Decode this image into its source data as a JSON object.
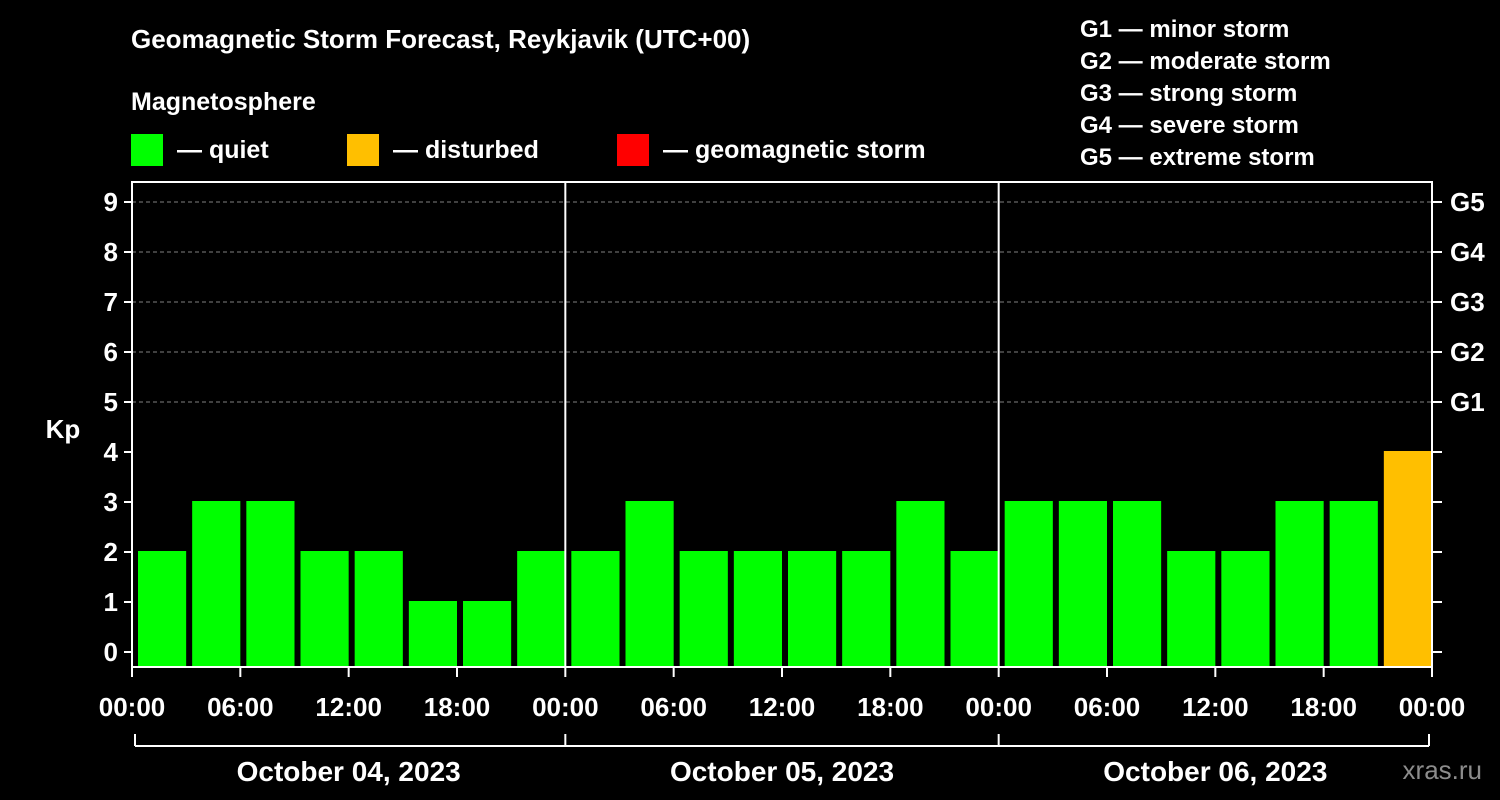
{
  "chart_data": {
    "type": "bar",
    "title": "Geomagnetic Storm Forecast, Reykjavik (UTC+00)",
    "subtitle": "Magnetosphere",
    "ylabel": "Kp",
    "ylim": [
      0,
      9
    ],
    "yticks": [
      "0",
      "1",
      "2",
      "3",
      "4",
      "5",
      "6",
      "7",
      "8",
      "9"
    ],
    "grid": true,
    "right_axis_labels": [
      {
        "kp": 5,
        "label": "G1"
      },
      {
        "kp": 6,
        "label": "G2"
      },
      {
        "kp": 7,
        "label": "G3"
      },
      {
        "kp": 8,
        "label": "G4"
      },
      {
        "kp": 9,
        "label": "G5"
      }
    ],
    "legend": [
      {
        "label": "— quiet",
        "color": "#00ff00"
      },
      {
        "label": "— disturbed",
        "color": "#ffbf00"
      },
      {
        "label": "— geomagnetic storm",
        "color": "#ff0000"
      }
    ],
    "storm_scale": [
      "G1 — minor storm",
      "G2 — moderate storm",
      "G3 — strong storm",
      "G4 — severe storm",
      "G5 — extreme storm"
    ],
    "xtick_labels": [
      "00:00",
      "06:00",
      "12:00",
      "18:00",
      "00:00",
      "06:00",
      "12:00",
      "18:00",
      "00:00",
      "06:00",
      "12:00",
      "18:00",
      "00:00"
    ],
    "days": [
      "October 04, 2023",
      "October 05, 2023",
      "October 06, 2023"
    ],
    "bars_per_day": 8,
    "values": [
      2,
      3,
      3,
      2,
      2,
      1,
      1,
      2,
      2,
      3,
      2,
      2,
      2,
      2,
      3,
      2,
      3,
      3,
      3,
      2,
      2,
      3,
      3,
      4
    ],
    "colors": {
      "quiet": "#00ff00",
      "disturbed": "#ffbf00",
      "storm": "#ff0000",
      "frame": "#ffffff",
      "grid": "#808080",
      "background": "#000000"
    },
    "watermark": "xras.ru"
  }
}
